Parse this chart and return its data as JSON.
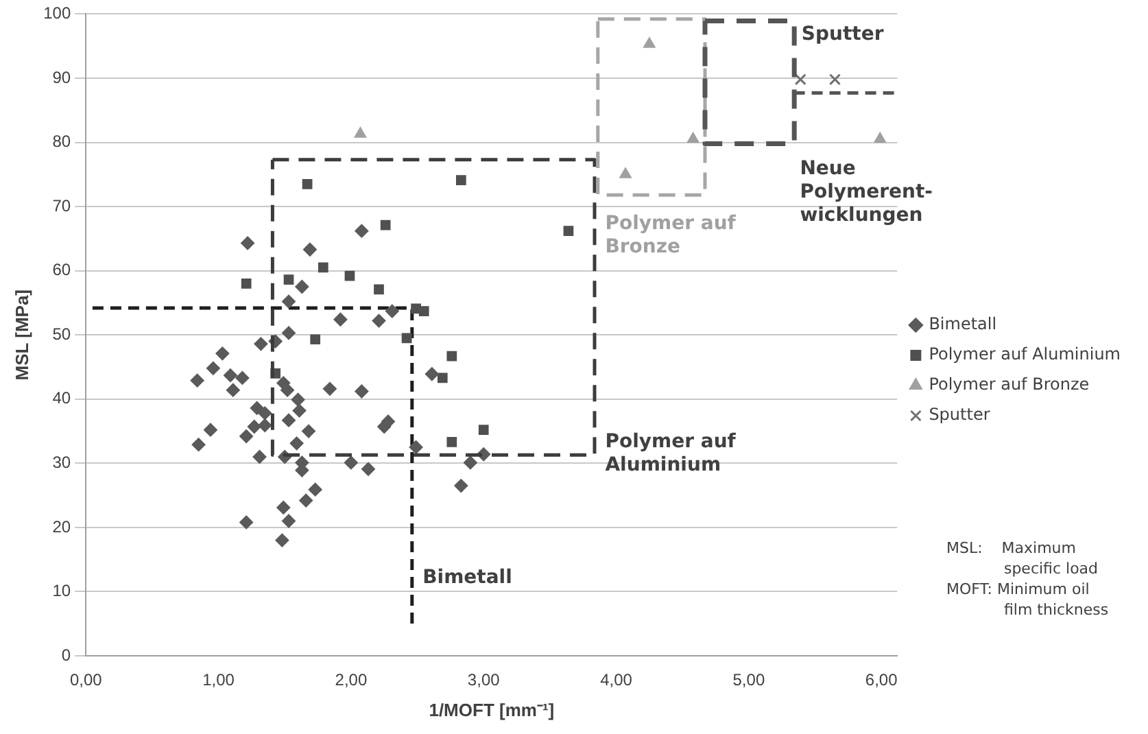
{
  "chart_data": {
    "type": "scatter",
    "xlabel": "1/MOFT [mm⁻¹]",
    "ylabel": "MSL [MPa]",
    "xlim": [
      0,
      6.12
    ],
    "xticks": [
      {
        "value": 0,
        "label": "0,00"
      },
      {
        "value": 1,
        "label": "1,00"
      },
      {
        "value": 2,
        "label": "2,00"
      },
      {
        "value": 3,
        "label": "3,00"
      },
      {
        "value": 4,
        "label": "4,00"
      },
      {
        "value": 5,
        "label": "5,00"
      },
      {
        "value": 6,
        "label": "6,00"
      }
    ],
    "ylim": [
      0,
      100
    ],
    "yticks": [
      0,
      10,
      20,
      30,
      40,
      50,
      60,
      70,
      80,
      90,
      100
    ],
    "grid": "y",
    "legend": "right",
    "series": [
      {
        "name": "Bimetall",
        "marker": "diamond",
        "color": "#5a5a5a",
        "x": [
          1.22,
          1.69,
          1.63,
          1.53,
          1.92,
          1.53,
          1.32,
          1.43,
          1.03,
          0.96,
          0.84,
          1.09,
          1.18,
          1.11,
          1.49,
          1.52,
          1.84,
          1.6,
          1.61,
          1.29,
          1.35,
          1.53,
          1.68,
          1.27,
          1.35,
          0.94,
          1.21,
          1.59,
          0.85,
          1.31,
          1.5,
          1.63,
          1.63,
          1.73,
          1.66,
          1.49,
          1.21,
          1.53,
          1.48,
          2.08,
          2.21,
          2.31,
          2.08,
          2.28,
          2.25,
          2.0,
          2.13,
          2.61,
          2.49,
          2.83,
          2.9,
          3.0
        ],
        "values": [
          64.3,
          63.3,
          57.5,
          55.2,
          52.4,
          50.3,
          48.6,
          49.0,
          47.1,
          44.8,
          42.9,
          43.7,
          43.3,
          41.4,
          42.5,
          41.4,
          41.6,
          39.9,
          38.2,
          38.6,
          37.8,
          36.7,
          35.0,
          35.7,
          35.9,
          35.2,
          34.2,
          33.1,
          32.9,
          31.0,
          31.0,
          30.1,
          28.9,
          25.9,
          24.2,
          23.1,
          20.8,
          21.0,
          18.0,
          66.2,
          52.2,
          53.7,
          41.2,
          36.5,
          35.7,
          30.1,
          29.1,
          43.9,
          32.5,
          26.5,
          30.1,
          31.4
        ]
      },
      {
        "name": "Polymer auf Aluminium",
        "marker": "square",
        "color": "#505050",
        "x": [
          1.21,
          1.53,
          1.79,
          1.99,
          1.73,
          1.43,
          1.67,
          2.83,
          2.26,
          3.64,
          2.21,
          2.49,
          2.55,
          2.42,
          2.76,
          2.69,
          3.0,
          2.76
        ],
        "values": [
          58.0,
          58.6,
          60.5,
          59.2,
          49.3,
          44.0,
          73.5,
          74.1,
          67.1,
          66.2,
          57.1,
          54.1,
          53.7,
          49.5,
          46.7,
          43.3,
          35.2,
          33.3
        ]
      },
      {
        "name": "Polymer auf Bronze",
        "marker": "triangle",
        "color": "#a0a0a0",
        "x": [
          2.07,
          4.25,
          4.07,
          4.58,
          5.99
        ],
        "values": [
          81.3,
          95.3,
          75.0,
          80.5,
          80.5
        ]
      },
      {
        "name": "Sputter",
        "marker": "cross",
        "color": "#707070",
        "x": [
          5.39,
          5.65
        ],
        "values": [
          89.8,
          89.8
        ]
      },
      {
        "type": "line",
        "line_style": "dashed",
        "marker": "none",
        "color": "#1e1e1e",
        "x": [
          0.05,
          2.46,
          2.46
        ],
        "values": [
          54.2,
          54.2,
          5
        ]
      },
      {
        "type": "line",
        "line_style": "dashed",
        "marker": "none",
        "color": "#555555",
        "x": [
          5.34,
          6.1
        ],
        "values": [
          87.7,
          87.7
        ]
      }
    ],
    "annotations": [
      "Bimetall",
      "Polymer auf\nAluminium",
      "Polymer auf\nBronze",
      "Neue\nPolymerent-\nwicklungen",
      "Sputter",
      "MSL:    Maximum\n            specific load\nMOFT: Minimum oil\n            film thickness"
    ]
  }
}
